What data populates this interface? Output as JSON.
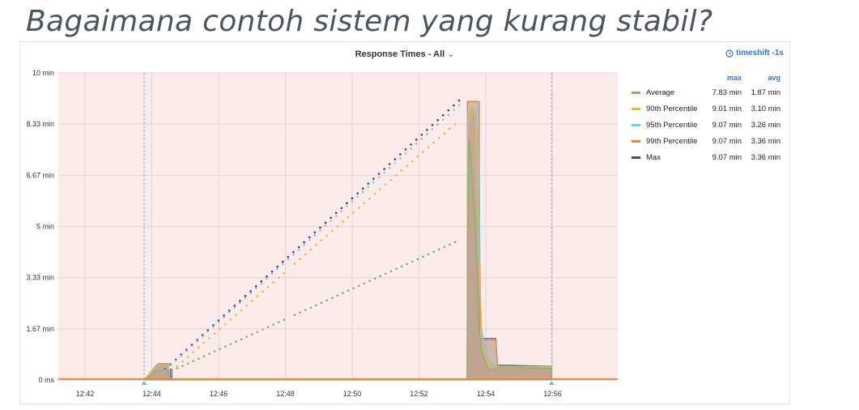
{
  "slide": {
    "title": "Bagaimana contoh sistem yang kurang stabil?"
  },
  "panel": {
    "title": "Response Times - All",
    "title_chevron": "⌄",
    "timeshift_label": "timeshift -1s"
  },
  "legend": {
    "columns": [
      "max",
      "avg"
    ],
    "rows": [
      {
        "name": "Average",
        "color": "#7eb26d",
        "max": "7.83 min",
        "avg": "1.87 min"
      },
      {
        "name": "90th Percentile",
        "color": "#eab839",
        "max": "9.01 min",
        "avg": "3.10 min"
      },
      {
        "name": "95th Percentile",
        "color": "#6ed0e0",
        "max": "9.07 min",
        "avg": "3.26 min"
      },
      {
        "name": "99th Percentile",
        "color": "#ef843c",
        "max": "9.07 min",
        "avg": "3.36 min"
      },
      {
        "name": "Max",
        "color": "#584477",
        "max": "9.07 min",
        "avg": "3.36 min"
      }
    ]
  },
  "chart_data": {
    "type": "line",
    "title": "Response Times - All",
    "xlabel": "",
    "ylabel": "",
    "x_unit": "minutes (clock time 12:mm)",
    "xlim": [
      41.2,
      57.95
    ],
    "ylim": [
      0,
      10
    ],
    "y_ticks": [
      {
        "value": 0,
        "label": "0 ms"
      },
      {
        "value": 1.667,
        "label": "1.67 min"
      },
      {
        "value": 3.333,
        "label": "3.33 min"
      },
      {
        "value": 5,
        "label": "5 min"
      },
      {
        "value": 6.667,
        "label": "6.67 min"
      },
      {
        "value": 8.333,
        "label": "8.33 min"
      },
      {
        "value": 10,
        "label": "10 min"
      }
    ],
    "x_ticks": [
      {
        "value": 42,
        "label": "12:42"
      },
      {
        "value": 44,
        "label": "12:44"
      },
      {
        "value": 46,
        "label": "12:46"
      },
      {
        "value": 48,
        "label": "12:48"
      },
      {
        "value": 50,
        "label": "12:50"
      },
      {
        "value": 52,
        "label": "12:52"
      },
      {
        "value": 54,
        "label": "12:54"
      },
      {
        "value": 56,
        "label": "12:56"
      }
    ],
    "grid": true,
    "legend_position": "right",
    "background": "#fbebeb",
    "markers_x": [
      43.77,
      55.97
    ],
    "dotted_series": [
      {
        "name": "Max",
        "color": "#6b2d5a",
        "start": [
          44.4,
          0.35
        ],
        "end": [
          53.2,
          9.1
        ],
        "step": 0.16,
        "gap": [
          48.1,
          48.2
        ]
      },
      {
        "name": "95th Percentile",
        "color": "#6ed0e0",
        "start": [
          44.4,
          0.32
        ],
        "end": [
          53.2,
          8.95
        ],
        "step": 0.16,
        "gap": [
          48.1,
          48.2
        ]
      },
      {
        "name": "90th Percentile",
        "color": "#eab839",
        "start": [
          44.6,
          0.3
        ],
        "end": [
          53.2,
          8.45
        ],
        "step": 0.16,
        "gap": [
          48.1,
          48.2
        ]
      },
      {
        "name": "Average",
        "color": "#7eb26d",
        "start": [
          44.6,
          0.3
        ],
        "end": [
          53.2,
          4.55
        ],
        "step": 0.16,
        "gap": [
          48.1,
          48.2
        ]
      }
    ],
    "filled_series": [
      {
        "name": "Max",
        "color": "#584477",
        "x": [
          43.77,
          44.15,
          44.2,
          44.5,
          44.5,
          44.55,
          44.55,
          44.6,
          44.6,
          53.44,
          53.45,
          53.8,
          53.82,
          54.3,
          54.35,
          54.7,
          55.97,
          55.97
        ],
        "y": [
          0,
          0.5,
          0.53,
          0.53,
          0,
          0,
          0.35,
          0.35,
          0,
          0,
          9.07,
          9.07,
          1.35,
          1.35,
          0.48,
          0.48,
          0.45,
          0
        ]
      },
      {
        "name": "99th Percentile",
        "color": "#ef843c",
        "x": [
          43.77,
          44.15,
          44.2,
          44.5,
          44.5,
          53.44,
          53.45,
          53.8,
          53.82,
          54.3,
          54.35,
          55.97,
          55.97
        ],
        "y": [
          0,
          0.5,
          0.52,
          0.52,
          0,
          0,
          9.07,
          9.07,
          1.3,
          1.3,
          0.45,
          0.44,
          0
        ]
      },
      {
        "name": "95th Percentile",
        "color": "#6ed0e0",
        "x": [
          43.77,
          44.15,
          44.2,
          44.5,
          44.5,
          53.44,
          53.45,
          53.7,
          53.8,
          53.85,
          54.0,
          54.1,
          54.35,
          55.97,
          55.97
        ],
        "y": [
          0,
          0.48,
          0.5,
          0.5,
          0,
          0,
          8.7,
          8.8,
          7.0,
          1.8,
          1.0,
          0.6,
          0.45,
          0.44,
          0
        ]
      },
      {
        "name": "90th Percentile",
        "color": "#eab839",
        "x": [
          43.77,
          44.15,
          44.2,
          44.5,
          44.5,
          53.44,
          53.45,
          53.58,
          53.7,
          53.8,
          53.9,
          54.1,
          54.35,
          55.97,
          55.97
        ],
        "y": [
          0,
          0.45,
          0.48,
          0.48,
          0,
          0,
          8.0,
          9.01,
          8.5,
          4.0,
          1.0,
          0.4,
          0.43,
          0.42,
          0
        ]
      },
      {
        "name": "Average",
        "color": "#7eb26d",
        "x": [
          43.77,
          44.15,
          44.2,
          44.5,
          44.5,
          53.44,
          53.45,
          53.5,
          53.6,
          53.7,
          53.8,
          53.9,
          54.1,
          54.35,
          55.97,
          55.97
        ],
        "y": [
          0,
          0.3,
          0.3,
          0.3,
          0,
          0,
          4.6,
          7.83,
          6.5,
          4.8,
          1.6,
          0.8,
          0.3,
          0.4,
          0.38,
          0
        ]
      }
    ],
    "baseline_series": {
      "name": "99th Percentile",
      "color": "#ef843c",
      "y": 0.03
    }
  }
}
